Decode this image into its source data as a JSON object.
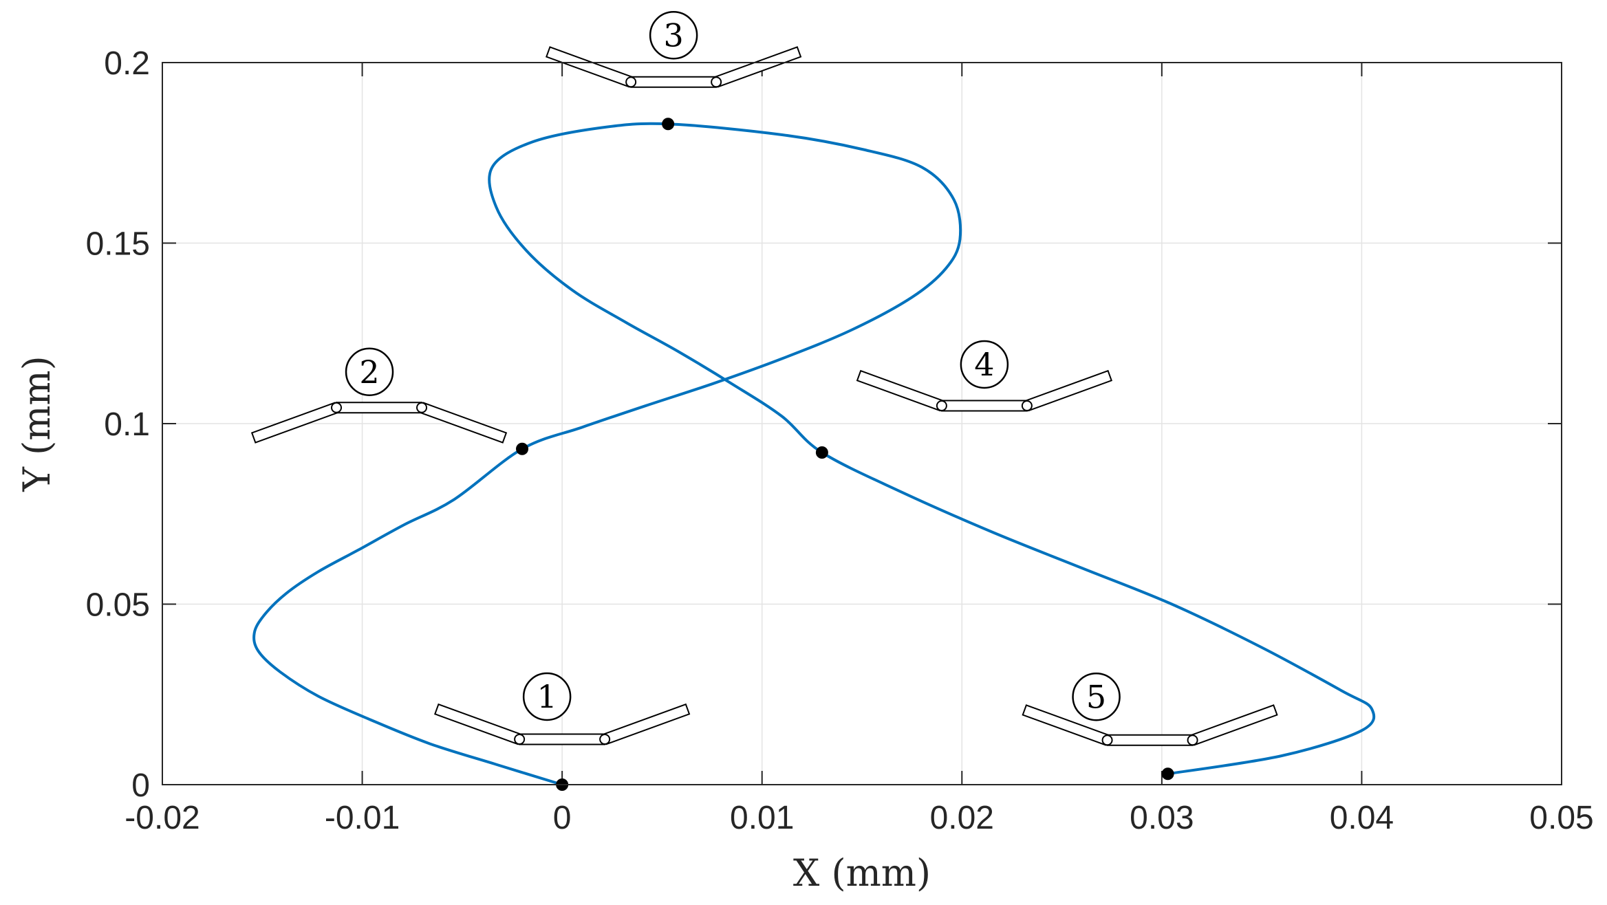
{
  "chart_data": {
    "type": "line",
    "xlabel": "X (mm)",
    "ylabel": "Y (mm)",
    "xlim": [
      -0.02,
      0.05
    ],
    "ylim": [
      0,
      0.2
    ],
    "grid": true,
    "x_ticks": [
      -0.02,
      -0.01,
      0,
      0.01,
      0.02,
      0.03,
      0.04,
      0.05
    ],
    "y_ticks": [
      0,
      0.05,
      0.1,
      0.15,
      0.2
    ],
    "x_tick_labels": [
      "-0.02",
      "-0.01",
      "0",
      "0.01",
      "0.02",
      "0.03",
      "0.04",
      "0.05"
    ],
    "y_tick_labels": [
      "0",
      "0.05",
      "0.1",
      "0.15",
      "0.2"
    ],
    "series": [
      {
        "color": "#0072BD",
        "x": [
          0.0,
          -0.0033,
          -0.0066,
          -0.0096,
          -0.0122,
          -0.0141,
          -0.0152,
          -0.0154,
          -0.0149,
          -0.0138,
          -0.0122,
          -0.0102,
          -0.0079,
          -0.0054,
          -0.002,
          0.001,
          0.0042,
          0.0075,
          0.011,
          0.0145,
          0.0175,
          0.0192,
          0.0199,
          0.0196,
          0.018,
          0.015,
          0.011,
          0.0053,
          0.002,
          -0.0015,
          -0.0035,
          -0.0033,
          -0.0018,
          0.0005,
          0.0032,
          0.0058,
          0.0085,
          0.011,
          0.013,
          0.017,
          0.0215,
          0.026,
          0.0305,
          0.035,
          0.039,
          0.0405,
          0.04,
          0.036,
          0.0303
        ],
        "y": [
          0.0,
          0.0056,
          0.0113,
          0.018,
          0.0245,
          0.0312,
          0.037,
          0.042,
          0.047,
          0.053,
          0.059,
          0.065,
          0.072,
          0.079,
          0.093,
          0.099,
          0.105,
          0.111,
          0.118,
          0.126,
          0.135,
          0.143,
          0.151,
          0.162,
          0.171,
          0.176,
          0.18,
          0.183,
          0.182,
          0.178,
          0.171,
          0.16,
          0.148,
          0.137,
          0.128,
          0.12,
          0.111,
          0.102,
          0.092,
          0.081,
          0.07,
          0.06,
          0.05,
          0.038,
          0.026,
          0.021,
          0.015,
          0.008,
          0.003
        ]
      }
    ],
    "points": [
      {
        "label": "1",
        "x": 0.0,
        "y": 0.0
      },
      {
        "label": "2",
        "x": -0.002,
        "y": 0.093
      },
      {
        "label": "3",
        "x": 0.0053,
        "y": 0.183
      },
      {
        "label": "4",
        "x": 0.013,
        "y": 0.092
      },
      {
        "label": "5",
        "x": 0.0303,
        "y": 0.003
      }
    ]
  }
}
